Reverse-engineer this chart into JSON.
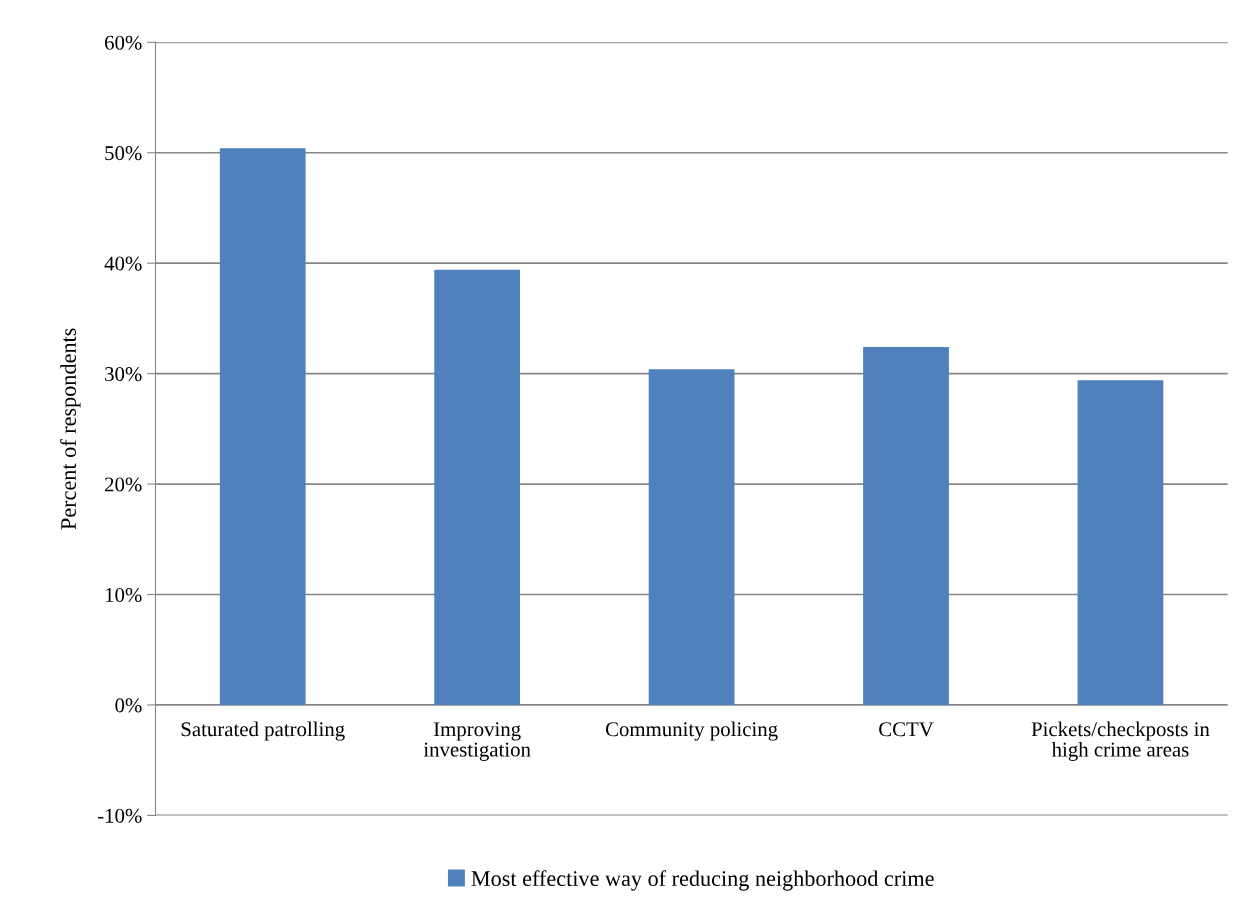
{
  "chart_data": {
    "type": "bar",
    "ylabel": "Percent of respondents",
    "categories": [
      "Saturated patrolling",
      "Improving\ninvestigation",
      "Community policing",
      "CCTV",
      "Pickets/checkposts in\nhigh crime areas"
    ],
    "series": [
      {
        "name": "Most effective way of reducing neighborhood crime",
        "color": "#4f81bd",
        "values": [
          50.4,
          39.4,
          30.4,
          32.4,
          29.4
        ]
      }
    ],
    "ylim": [
      -10,
      60
    ],
    "yticks": [
      {
        "value": -10,
        "label": "-10%"
      },
      {
        "value": 0,
        "label": "0%"
      },
      {
        "value": 10,
        "label": "10%"
      },
      {
        "value": 20,
        "label": "20%"
      },
      {
        "value": 30,
        "label": "30%"
      },
      {
        "value": 40,
        "label": "40%"
      },
      {
        "value": 50,
        "label": "50%"
      },
      {
        "value": 60,
        "label": "60%"
      }
    ],
    "grid": "y",
    "legend": "bottom"
  }
}
